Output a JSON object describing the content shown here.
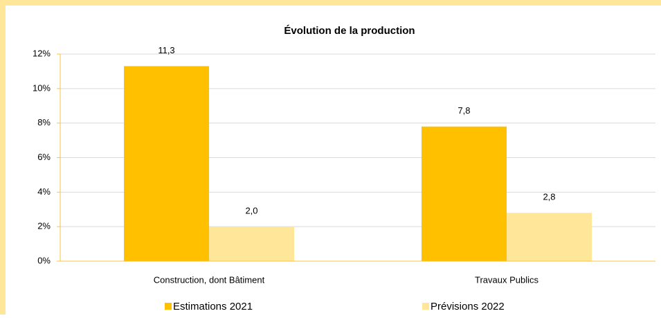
{
  "chart_data": {
    "type": "bar",
    "title": "Évolution de la production",
    "categories": [
      "Construction, dont Bâtiment",
      "Travaux Publics"
    ],
    "series": [
      {
        "name": "Estimations 2021",
        "color": "#ffc000",
        "values": [
          11.3,
          7.8
        ],
        "value_labels": [
          "11,3",
          "7,8"
        ]
      },
      {
        "name": "Prévisions 2022",
        "color": "#ffe699",
        "values": [
          2.0,
          2.8
        ],
        "value_labels": [
          "2,0",
          "2,8"
        ]
      }
    ],
    "ylim": [
      0,
      12
    ],
    "yticks": [
      {
        "value": 0,
        "label": "0%"
      },
      {
        "value": 2,
        "label": "2%"
      },
      {
        "value": 4,
        "label": "4%"
      },
      {
        "value": 6,
        "label": "6%"
      },
      {
        "value": 8,
        "label": "8%"
      },
      {
        "value": 10,
        "label": "10%"
      },
      {
        "value": 12,
        "label": "12%"
      }
    ],
    "grid": true,
    "legend": "bottom"
  }
}
